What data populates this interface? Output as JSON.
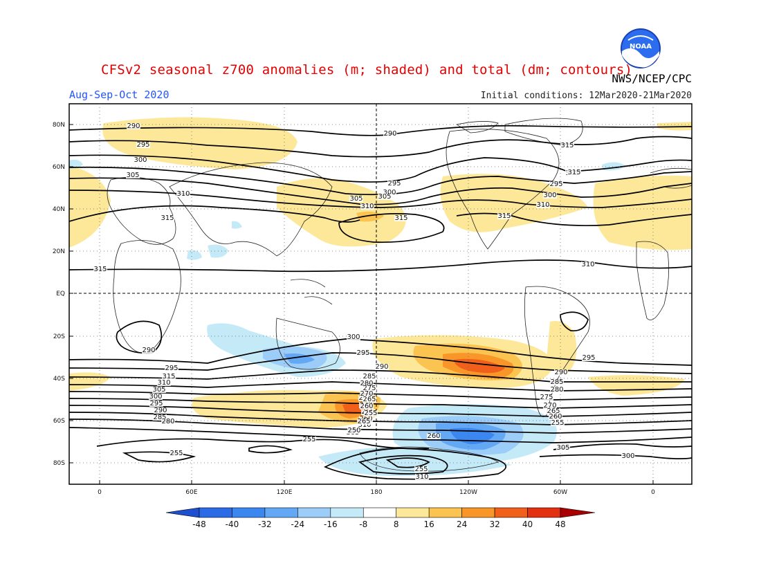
{
  "header": {
    "title": "CFSv2 seasonal z700 anomalies (m; shaded) and total (dm; contours)",
    "subtitle": "Aug-Sep-Oct 2020",
    "initial_conditions": "Initial conditions: 12Mar2020-21Mar2020",
    "agency": "NWS/NCEP/CPC",
    "logo_text": "NOAA"
  },
  "axes": {
    "lat_ticks": [
      "80N",
      "60N",
      "40N",
      "20N",
      "EQ",
      "20S",
      "40S",
      "60S",
      "80S"
    ],
    "lon_ticks": [
      "0",
      "60E",
      "120E",
      "180",
      "120W",
      "60W",
      "0"
    ]
  },
  "contour_labels": [
    "290",
    "295",
    "300",
    "305",
    "310",
    "315",
    "315",
    "305",
    "310",
    "315",
    "315",
    "290",
    "295",
    "300",
    "305",
    "310",
    "295",
    "300",
    "305",
    "310",
    "315",
    "315",
    "290",
    "295",
    "315",
    "310",
    "305",
    "300",
    "295",
    "290",
    "285",
    "280",
    "275",
    "270",
    "265",
    "260",
    "310",
    "305",
    "300",
    "295",
    "290",
    "285",
    "280",
    "275",
    "270",
    "265",
    "260",
    "255",
    "265",
    "250",
    "255",
    "255",
    "260",
    "255",
    "310",
    "305",
    "300",
    "295",
    "290",
    "285",
    "280",
    "275",
    "270",
    "265",
    "260",
    "255"
  ],
  "colorbar": {
    "ticks": [
      "-48",
      "-40",
      "-32",
      "-24",
      "-16",
      "-8",
      "8",
      "16",
      "24",
      "32",
      "40",
      "48"
    ],
    "colors": [
      "#1e4fd0",
      "#2c6be6",
      "#3c86f0",
      "#63a8f5",
      "#9cccf8",
      "#c5eaf7",
      "#ffffff",
      "#fde89a",
      "#fbc450",
      "#f8962a",
      "#f0601a",
      "#e23010",
      "#c81008",
      "#a80000"
    ]
  }
}
